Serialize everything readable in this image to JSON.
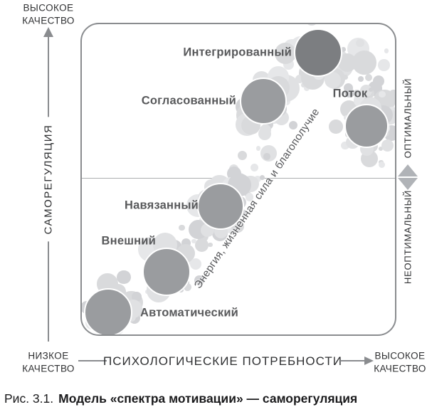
{
  "colors": {
    "circle_fill": "#9a9c9f",
    "circle_integrated_fill": "#7c7e81",
    "bubble": "#dcdde0",
    "label_text": "#58595b",
    "axis_text": "#2f3032",
    "line": "#8a8c8f",
    "diamond": "#b0b3b7",
    "caption": "#1a1a1c"
  },
  "left_axis": {
    "top_quality_line1": "ВЫСОКОЕ",
    "top_quality_line2": "КАЧЕСТВО",
    "label": "САМОРЕГУЛЯЦИЯ",
    "bottom_quality_line1": "НИЗКОЕ",
    "bottom_quality_line2": "КАЧЕСТВО"
  },
  "bottom_axis": {
    "label": "ПСИХОЛОГИЧЕСКИЕ ПОТРЕБНОСТИ",
    "right_quality_line1": "ВЫСОКОЕ",
    "right_quality_line2": "КАЧЕСТВО"
  },
  "right_axis": {
    "optimal": "ОПТИМАЛЬНЫЙ",
    "suboptimal": "НЕОПТИМАЛЬНЫЙ"
  },
  "stages": [
    {
      "id": "automatic",
      "label": "Автоматический"
    },
    {
      "id": "external",
      "label": "Внешний"
    },
    {
      "id": "imposed",
      "label": "Навязанный"
    },
    {
      "id": "aligned",
      "label": "Согласованный"
    },
    {
      "id": "integrated",
      "label": "Интегрированный"
    },
    {
      "id": "flow",
      "label": "Поток"
    }
  ],
  "band_annotation": "Энергия, жизненная сила и благополучие",
  "caption": {
    "prefix": "Рис. 3.1.",
    "title": "Модель «спектра мотивации» — саморегуляция"
  }
}
